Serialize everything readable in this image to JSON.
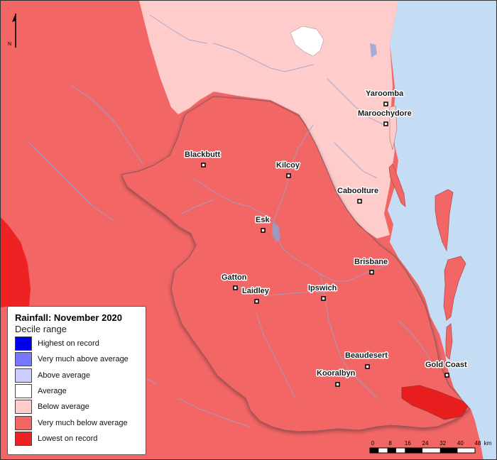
{
  "legend": {
    "title": "Rainfall: November 2020",
    "subtitle": "Decile range",
    "items": [
      {
        "label": "Highest on record",
        "color": "#0000ee"
      },
      {
        "label": "Very much above average",
        "color": "#7777ff"
      },
      {
        "label": "Above average",
        "color": "#ccccff"
      },
      {
        "label": "Average",
        "color": "#ffffff"
      },
      {
        "label": "Below average",
        "color": "#ffcccc"
      },
      {
        "label": "Very much below average",
        "color": "#f26666"
      },
      {
        "label": "Lowest on record",
        "color": "#ee2222"
      }
    ]
  },
  "towns": [
    {
      "name": "Yaroomba"
    },
    {
      "name": "Maroochydore"
    },
    {
      "name": "Blackbutt"
    },
    {
      "name": "Kilcoy"
    },
    {
      "name": "Caboolture"
    },
    {
      "name": "Esk"
    },
    {
      "name": "Brisbane"
    },
    {
      "name": "Gatton"
    },
    {
      "name": "Laidley"
    },
    {
      "name": "Ipswich"
    },
    {
      "name": "Beaudesert"
    },
    {
      "name": "Gold Coast"
    },
    {
      "name": "Kooralbyn"
    }
  ],
  "scale": {
    "ticks": [
      "0",
      "8",
      "16",
      "24",
      "32",
      "40",
      "48"
    ],
    "unit": "km"
  },
  "north": {
    "label": "N"
  },
  "colors": {
    "ocean": "#c4ddf4",
    "very_much_below": "#f26666",
    "below": "#ffcccc",
    "lowest": "#ee2222",
    "average": "#ffffff",
    "rivers": "#9aa4cc"
  }
}
